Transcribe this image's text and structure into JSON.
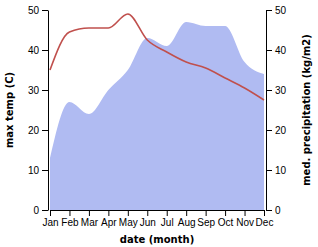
{
  "chart_data": {
    "type": "line",
    "xlabel": "date (month)",
    "ylabel": "max temp (C)",
    "y2label": "med. precipitation (kg/m2)",
    "categories": [
      "Jan",
      "Feb",
      "Mar",
      "Apr",
      "May",
      "Jun",
      "Jul",
      "Aug",
      "Sep",
      "Oct",
      "Nov",
      "Dec"
    ],
    "series": [
      {
        "type": "area",
        "axis": "y2",
        "color": "#b0bbf2",
        "values": [
          13,
          27,
          24,
          30,
          35,
          43,
          41,
          47,
          46,
          46,
          37,
          34
        ]
      },
      {
        "type": "line",
        "color": "#c0504d",
        "values": [
          35,
          44.5,
          45.5,
          45.5,
          49,
          42.5,
          39.5,
          37,
          35.5,
          33,
          30.5,
          27.5
        ]
      }
    ],
    "ylim": [
      0,
      50
    ],
    "yticks": [
      0,
      10,
      20,
      30,
      40,
      50
    ],
    "y2lim": [
      0,
      50
    ],
    "y2ticks": [
      0,
      10,
      20,
      30,
      40,
      50
    ]
  }
}
